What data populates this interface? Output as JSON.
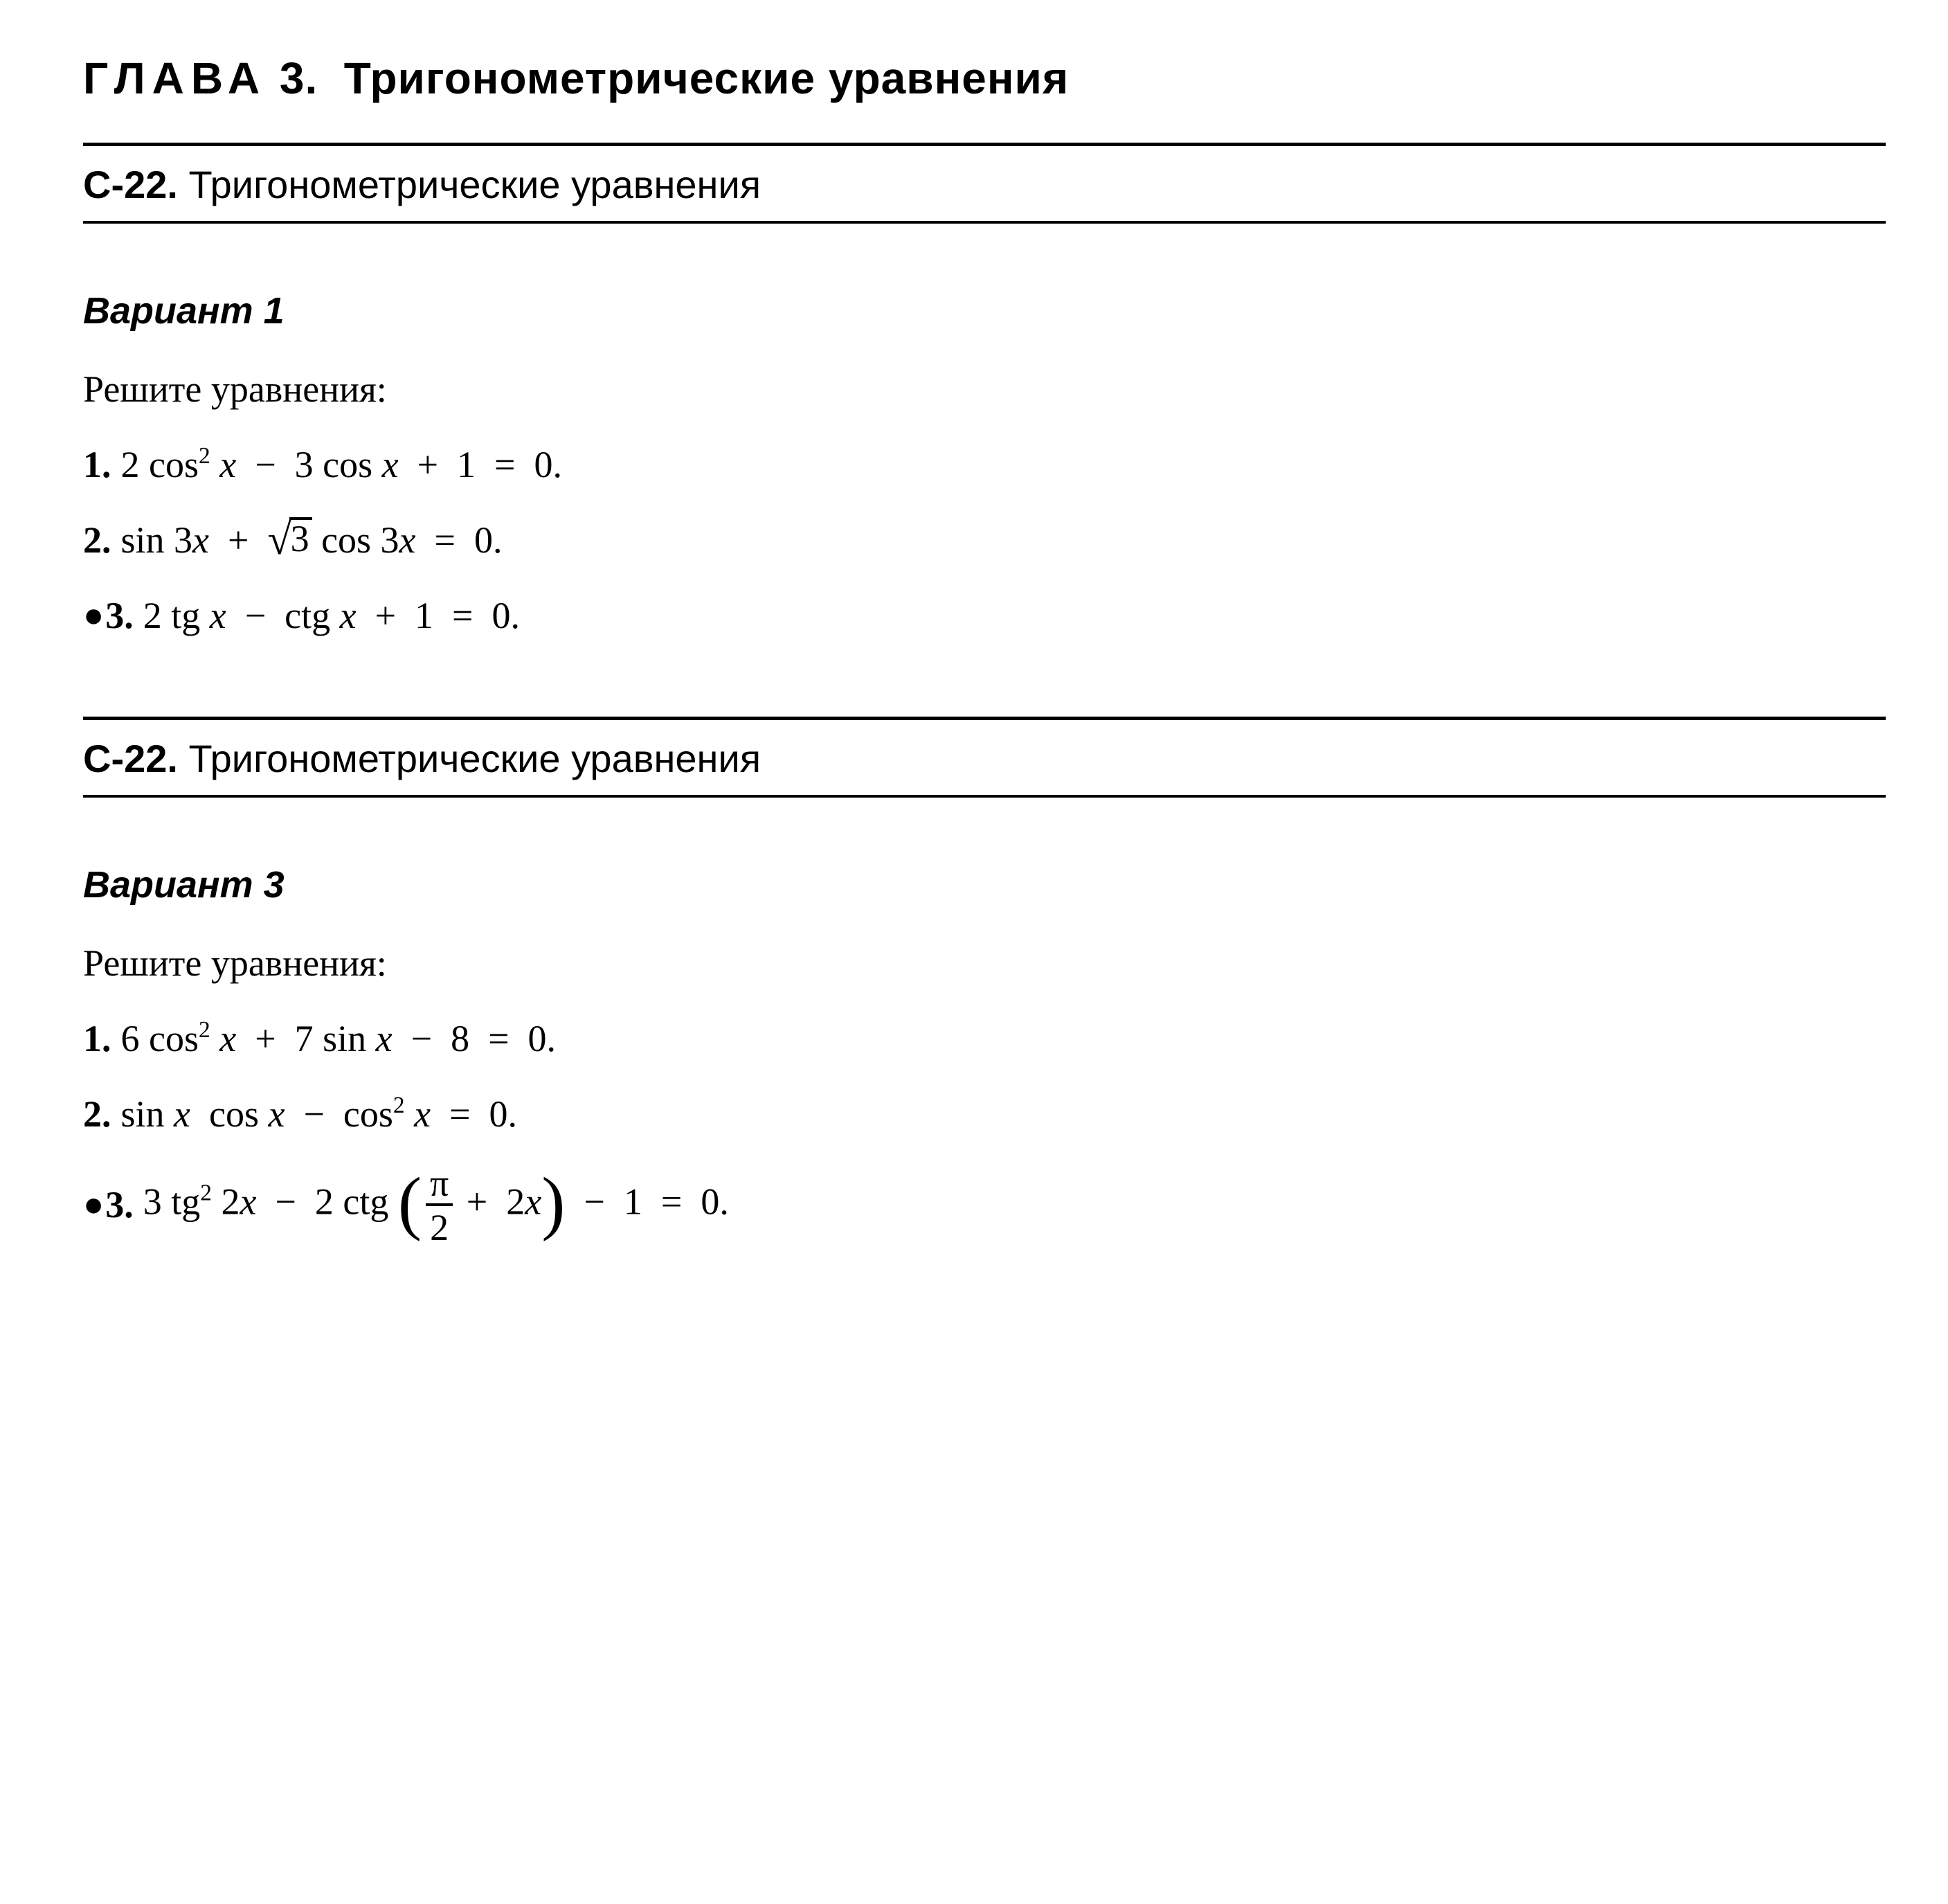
{
  "chapter": {
    "word": "ГЛАВА",
    "number": "3.",
    "title": "Тригонометрические уравнения"
  },
  "sections": [
    {
      "sec_num": "С-22.",
      "sec_title": "Тригонометрические уравнения",
      "variant_label": "Вариант 1",
      "instruction": "Решите уравнения:",
      "problems": [
        {
          "bullet": false,
          "num": "1.",
          "html": "2 cos<sup class=\"pw\">2</sup> <span class=\"it\">x</span> &nbsp;&minus;&nbsp; 3 cos <span class=\"it\">x</span> &nbsp;+&nbsp; 1 &nbsp;=&nbsp; 0."
        },
        {
          "bullet": false,
          "num": "2.",
          "html": "sin 3<span class=\"it\">x</span> &nbsp;+&nbsp; <span class=\"sqrt-wrap\"><span class=\"radical\">&radic;</span><span class=\"radicand\">3</span></span> cos 3<span class=\"it\">x</span> &nbsp;=&nbsp; 0."
        },
        {
          "bullet": true,
          "num": "3.",
          "html": "2 tg <span class=\"it\">x</span> &nbsp;&minus;&nbsp; ctg <span class=\"it\">x</span> &nbsp;+&nbsp; 1 &nbsp;=&nbsp; 0."
        }
      ]
    },
    {
      "sec_num": "С-22.",
      "sec_title": "Тригонометрические уравнения",
      "variant_label": "Вариант 3",
      "instruction": "Решите уравнения:",
      "problems": [
        {
          "bullet": false,
          "num": "1.",
          "html": "6 cos<sup class=\"pw\">2</sup> <span class=\"it\">x</span> &nbsp;+&nbsp; 7 sin <span class=\"it\">x</span> &nbsp;&minus;&nbsp; 8 &nbsp;=&nbsp; 0."
        },
        {
          "bullet": false,
          "num": "2.",
          "html": "sin <span class=\"it\">x</span>&nbsp; cos <span class=\"it\">x</span> &nbsp;&minus;&nbsp; cos<sup class=\"pw\">2</sup> <span class=\"it\">x</span> &nbsp;=&nbsp; 0."
        },
        {
          "bullet": true,
          "num": "3.",
          "html": "3 tg<sup class=\"pw\">2</sup> 2<span class=\"it\">x</span> &nbsp;&minus;&nbsp; 2 ctg <span class=\"bigp\">(</span><span class=\"frac\"><span class=\"num\">&pi;</span><span class=\"den\">2</span></span> +&nbsp; 2<span class=\"it\">x</span><span class=\"bigp\">)</span> &nbsp;&minus;&nbsp; 1 &nbsp;=&nbsp; 0."
        }
      ]
    }
  ]
}
